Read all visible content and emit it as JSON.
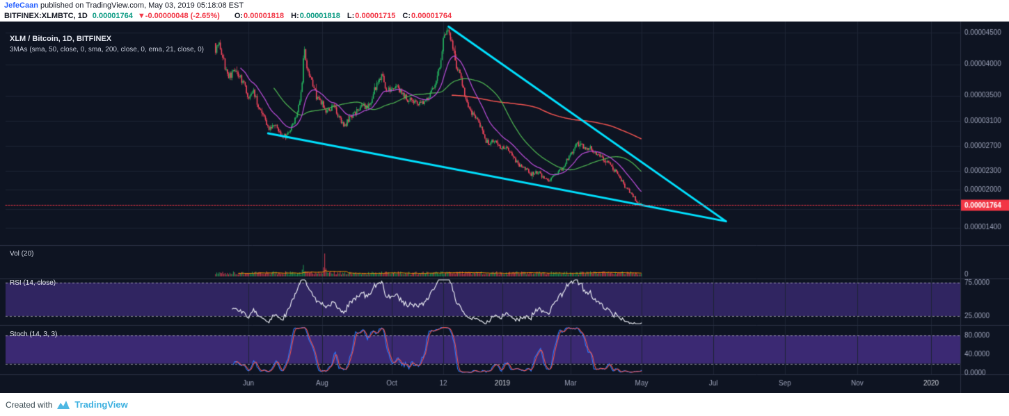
{
  "publish_bar": {
    "author": "JefeCaan",
    "text": " published on TradingView.com, May 03, 2019 05:18:08 EST"
  },
  "symbol_bar": {
    "symbol": "BITFINEX:XLMBTC, 1D",
    "last": "0.00001764",
    "arrow": "▼",
    "change": "-0.00000048 (-2.65%)",
    "open_label": "O:",
    "open": "0.00001818",
    "high_label": "H:",
    "high": "0.00001818",
    "low_label": "L:",
    "low": "0.00001715",
    "close_label": "C:",
    "close": "0.00001764"
  },
  "legend": {
    "title": "XLM / Bitcoin, 1D, BITFINEX",
    "mas": "3MAs (sma, 50, close, 0, sma, 200, close, 0, ema, 21, close, 0)"
  },
  "panes": {
    "volume_label": "Vol (20)",
    "rsi_label": "RSI (14, close)",
    "stoch_label": "Stoch (14, 3, 3)"
  },
  "footer": {
    "created_with": "Created with",
    "brand": "TradingView"
  },
  "chart_data": {
    "type": "candlestick",
    "symbol": "BITFINEX:XLMBTC",
    "timeframe": "1D",
    "price_unit": 1e-08,
    "seed": 7,
    "num_candles": 360,
    "noise_pct": 0.016,
    "candle_span": [
      0.22,
      0.666
    ],
    "price_path": [
      [
        0.22,
        4250
      ],
      [
        0.2235,
        4380
      ],
      [
        0.227,
        4120
      ],
      [
        0.2305,
        3950
      ],
      [
        0.234,
        3800
      ],
      [
        0.242,
        3920
      ],
      [
        0.249,
        3690
      ],
      [
        0.2545,
        3500
      ],
      [
        0.26,
        3560
      ],
      [
        0.265,
        3300
      ],
      [
        0.271,
        3120
      ],
      [
        0.277,
        2960
      ],
      [
        0.282,
        3020
      ],
      [
        0.288,
        2890
      ],
      [
        0.294,
        2860
      ],
      [
        0.3,
        3010
      ],
      [
        0.306,
        3230
      ],
      [
        0.3105,
        3700
      ],
      [
        0.3128,
        4280
      ],
      [
        0.316,
        3900
      ],
      [
        0.321,
        3680
      ],
      [
        0.326,
        3480
      ],
      [
        0.331,
        3390
      ],
      [
        0.337,
        3240
      ],
      [
        0.343,
        3350
      ],
      [
        0.348,
        3190
      ],
      [
        0.354,
        3000
      ],
      [
        0.36,
        3140
      ],
      [
        0.366,
        3240
      ],
      [
        0.372,
        3300
      ],
      [
        0.378,
        3340
      ],
      [
        0.383,
        3420
      ],
      [
        0.389,
        3700
      ],
      [
        0.394,
        3840
      ],
      [
        0.398,
        3640
      ],
      [
        0.404,
        3590
      ],
      [
        0.41,
        3680
      ],
      [
        0.415,
        3540
      ],
      [
        0.421,
        3440
      ],
      [
        0.427,
        3390
      ],
      [
        0.433,
        3340
      ],
      [
        0.439,
        3400
      ],
      [
        0.445,
        3500
      ],
      [
        0.45,
        3700
      ],
      [
        0.455,
        4000
      ],
      [
        0.459,
        4400
      ],
      [
        0.464,
        4520
      ],
      [
        0.468,
        4280
      ],
      [
        0.472,
        3980
      ],
      [
        0.477,
        3790
      ],
      [
        0.481,
        3500
      ],
      [
        0.485,
        3300
      ],
      [
        0.49,
        3200
      ],
      [
        0.494,
        3140
      ],
      [
        0.499,
        2940
      ],
      [
        0.503,
        2790
      ],
      [
        0.507,
        2750
      ],
      [
        0.512,
        2800
      ],
      [
        0.516,
        2700
      ],
      [
        0.52,
        2650
      ],
      [
        0.525,
        2710
      ],
      [
        0.529,
        2590
      ],
      [
        0.533,
        2490
      ],
      [
        0.538,
        2400
      ],
      [
        0.542,
        2350
      ],
      [
        0.547,
        2300
      ],
      [
        0.551,
        2250
      ],
      [
        0.555,
        2300
      ],
      [
        0.56,
        2250
      ],
      [
        0.564,
        2200
      ],
      [
        0.569,
        2150
      ],
      [
        0.573,
        2210
      ],
      [
        0.577,
        2260
      ],
      [
        0.582,
        2320
      ],
      [
        0.586,
        2420
      ],
      [
        0.59,
        2510
      ],
      [
        0.595,
        2620
      ],
      [
        0.599,
        2750
      ],
      [
        0.603,
        2700
      ],
      [
        0.608,
        2650
      ],
      [
        0.612,
        2700
      ],
      [
        0.617,
        2600
      ],
      [
        0.621,
        2550
      ],
      [
        0.625,
        2500
      ],
      [
        0.63,
        2460
      ],
      [
        0.634,
        2400
      ],
      [
        0.638,
        2310
      ],
      [
        0.643,
        2210
      ],
      [
        0.647,
        2100
      ],
      [
        0.651,
        2010
      ],
      [
        0.656,
        1920
      ],
      [
        0.66,
        1850
      ],
      [
        0.663,
        1800
      ],
      [
        0.666,
        1764
      ]
    ],
    "y_axis": {
      "top_price": 4680,
      "bottom_price": 1120,
      "last_price": 1764,
      "last_label": "0.00001764",
      "ticks": [
        {
          "value": 4500,
          "label": "0.00004500"
        },
        {
          "value": 4000,
          "label": "0.00004000"
        },
        {
          "value": 3500,
          "label": "0.00003500"
        },
        {
          "value": 3100,
          "label": "0.00003100"
        },
        {
          "value": 2700,
          "label": "0.00002700"
        },
        {
          "value": 2300,
          "label": "0.00002300"
        },
        {
          "value": 2000,
          "label": "0.00002000"
        },
        {
          "value": 1700,
          "label": "0.00001700"
        },
        {
          "value": 1400,
          "label": "0.00001400"
        }
      ]
    },
    "x_axis": {
      "labels": [
        {
          "t": 0.2544,
          "text": "Jun",
          "year": false
        },
        {
          "t": 0.3316,
          "text": "Aug",
          "year": false
        },
        {
          "t": 0.4045,
          "text": "Oct",
          "year": false
        },
        {
          "t": 0.4585,
          "text": "12",
          "year": false
        },
        {
          "t": 0.5204,
          "text": "2019",
          "year": true
        },
        {
          "t": 0.5918,
          "text": "Mar",
          "year": false
        },
        {
          "t": 0.6662,
          "text": "May",
          "year": false
        },
        {
          "t": 0.7413,
          "text": "Jul",
          "year": false
        },
        {
          "t": 0.8163,
          "text": "Sep",
          "year": false
        },
        {
          "t": 0.8921,
          "text": "Nov",
          "year": false
        },
        {
          "t": 0.9694,
          "text": "2020",
          "year": true
        }
      ]
    },
    "trendlines": [
      {
        "name": "upper-wedge-line",
        "from": [
          0.464,
          4600
        ],
        "to": [
          0.7545,
          1500
        ],
        "color": "#00e1ff",
        "width": 3
      },
      {
        "name": "lower-wedge-line",
        "from": [
          0.275,
          2900
        ],
        "to": [
          0.7545,
          1500
        ],
        "color": "#00e1ff",
        "width": 3
      }
    ],
    "moving_averages": [
      {
        "type": "sma",
        "length": 200,
        "color": "#ef5350",
        "width": 1.5
      },
      {
        "type": "sma",
        "length": 50,
        "color": "#4caf50",
        "width": 1.3
      },
      {
        "type": "ema",
        "length": 21,
        "color": "#b44bd2",
        "width": 1.3
      }
    ],
    "indicators": {
      "volume": {
        "length": 20,
        "ma_color": "#ff9800",
        "spikes": [
          {
            "t": 0.3125,
            "rel": 0.5
          },
          {
            "t": 0.3345,
            "rel": 1.0
          }
        ],
        "axis_label": "0"
      },
      "rsi": {
        "length": 14,
        "source": "close",
        "line_color": "#e8eaf2",
        "band": [
          75,
          25
        ],
        "band_color": "rgba(106,66,200,0.38)",
        "levels": [
          {
            "value": 75,
            "label": "75.0000"
          },
          {
            "value": 25,
            "label": "25.0000"
          }
        ]
      },
      "stoch": {
        "k": 14,
        "d": 3,
        "smooth": 3,
        "k_color": "#2979ff",
        "d_color": "#ef5350",
        "band": [
          80,
          20
        ],
        "band_color": "rgba(116,66,214,0.45)",
        "levels": [
          {
            "value": 80,
            "label": "80.0000"
          },
          {
            "value": 40,
            "label": "40.0000"
          },
          {
            "value": 0,
            "label": "0.0000"
          }
        ]
      }
    },
    "colors": {
      "bg": "#0e1422",
      "grid": "#1d2435",
      "divider": "#2a3044",
      "up": "#24b35f",
      "down": "#f2455c",
      "axis_text": "#9aa0b6",
      "year_text": "#d1d4dc",
      "last_badge": "#f23645"
    }
  }
}
